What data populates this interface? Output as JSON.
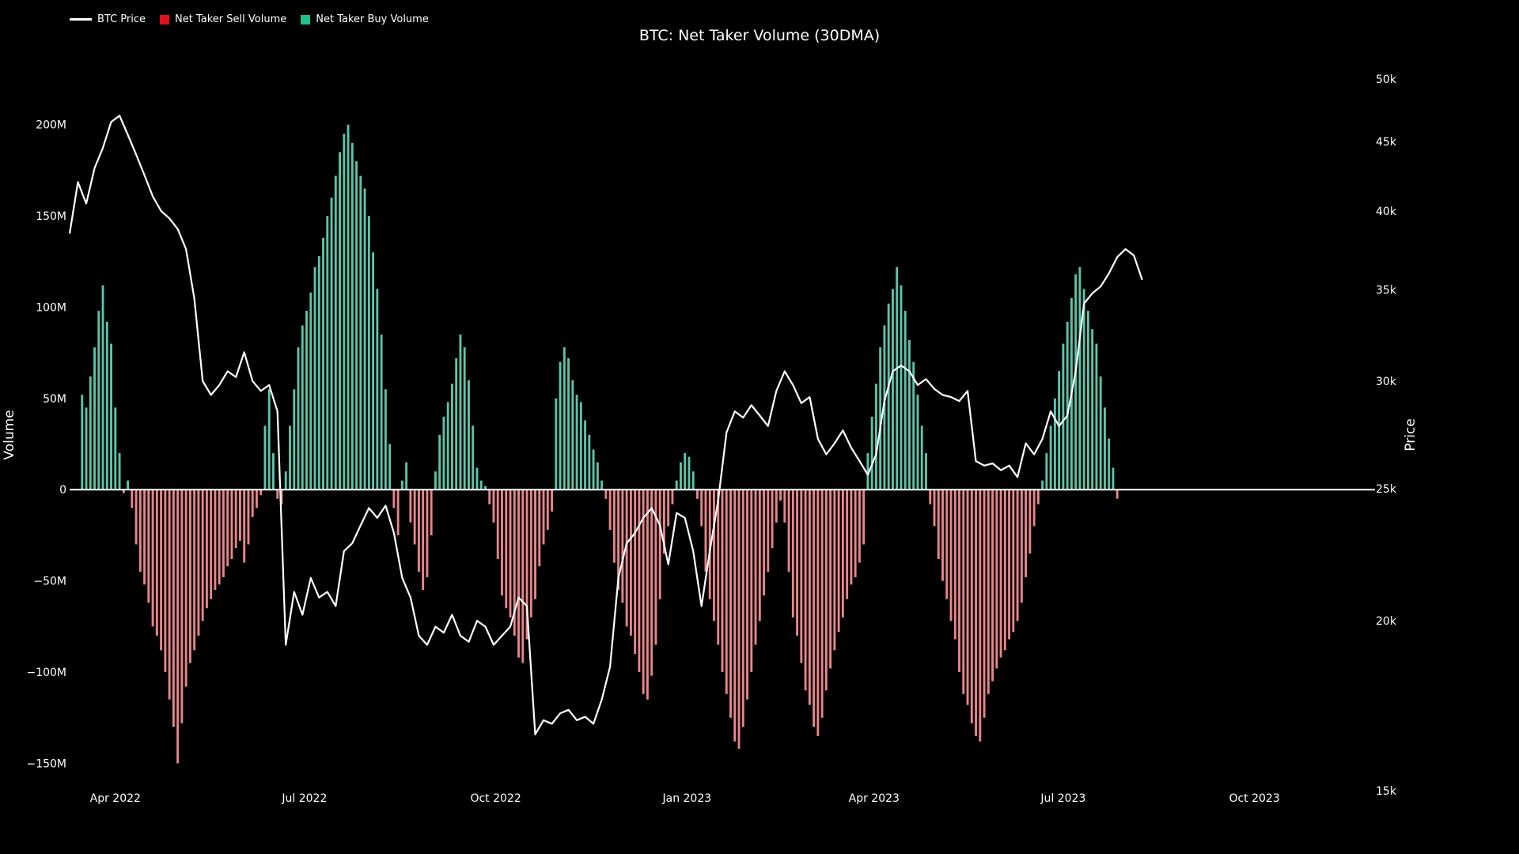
{
  "chart_data": {
    "type": "bar",
    "title": "BTC: Net Taker Volume (30DMA)",
    "ylabel": "Volume",
    "y2label": "Price",
    "ylim": [
      -165000000,
      225000000
    ],
    "y2lim": [
      15000,
      50000
    ],
    "y2scale": "log",
    "legend_position": "top-left",
    "grid": false,
    "yticks": [
      {
        "value": 200000000,
        "label": "200M"
      },
      {
        "value": 150000000,
        "label": "150M"
      },
      {
        "value": 100000000,
        "label": "100M"
      },
      {
        "value": 50000000,
        "label": "50M"
      },
      {
        "value": 0,
        "label": "0"
      },
      {
        "value": -50000000,
        "label": "−50M"
      },
      {
        "value": -100000000,
        "label": "−100M"
      },
      {
        "value": -150000000,
        "label": "−150M"
      }
    ],
    "y2ticks": [
      {
        "value": 50000,
        "label": "50k"
      },
      {
        "value": 45000,
        "label": "45k"
      },
      {
        "value": 40000,
        "label": "40k"
      },
      {
        "value": 35000,
        "label": "35k"
      },
      {
        "value": 30000,
        "label": "30k"
      },
      {
        "value": 25000,
        "label": "25k"
      },
      {
        "value": 20000,
        "label": "20k"
      },
      {
        "value": 15000,
        "label": "15k"
      }
    ],
    "xticks": [
      {
        "date": "2022-04-01",
        "label": "Apr 2022"
      },
      {
        "date": "2022-07-01",
        "label": "Jul 2022"
      },
      {
        "date": "2022-10-01",
        "label": "Oct 2022"
      },
      {
        "date": "2023-01-01",
        "label": "Jan 2023"
      },
      {
        "date": "2023-04-01",
        "label": "Apr 2023"
      },
      {
        "date": "2023-07-01",
        "label": "Jul 2023"
      },
      {
        "date": "2023-10-01",
        "label": "Oct 2023"
      }
    ],
    "xrange": [
      "2022-03-10",
      "2023-11-28"
    ],
    "colors": {
      "sell": "#e8868a",
      "buy": "#5dc4a8",
      "price": "#ffffff",
      "legend_sell": "#e0101c",
      "legend_buy": "#1fc08e",
      "zero_line": "#ffffff"
    },
    "series": [
      {
        "name": "Net Taker Volume",
        "step_days": 2,
        "start": "2022-03-16",
        "values_millions": [
          52,
          45,
          62,
          78,
          98,
          112,
          92,
          80,
          45,
          20,
          -2,
          5,
          -10,
          -30,
          -45,
          -52,
          -62,
          -75,
          -80,
          -88,
          -100,
          -115,
          -130,
          -150,
          -128,
          -108,
          -95,
          -88,
          -80,
          -72,
          -65,
          -60,
          -55,
          -52,
          -48,
          -42,
          -38,
          -32,
          -28,
          -40,
          -30,
          -15,
          -10,
          -3,
          35,
          55,
          20,
          -5,
          -8,
          10,
          35,
          55,
          78,
          90,
          98,
          108,
          122,
          128,
          138,
          150,
          160,
          172,
          185,
          195,
          200,
          190,
          180,
          172,
          165,
          150,
          130,
          110,
          85,
          55,
          25,
          -10,
          -25,
          5,
          15,
          -18,
          -30,
          -45,
          -55,
          -48,
          -25,
          10,
          30,
          40,
          48,
          58,
          72,
          85,
          78,
          60,
          35,
          12,
          5,
          2,
          -8,
          -18,
          -38,
          -58,
          -65,
          -70,
          -80,
          -92,
          -95,
          -82,
          -70,
          -60,
          -42,
          -30,
          -22,
          -12,
          50,
          70,
          78,
          72,
          60,
          52,
          48,
          38,
          30,
          22,
          15,
          5,
          -5,
          -22,
          -40,
          -55,
          -62,
          -75,
          -80,
          -90,
          -100,
          -112,
          -115,
          -102,
          -85,
          -60,
          -35,
          -20,
          -8,
          5,
          15,
          20,
          18,
          10,
          -5,
          -20,
          -45,
          -60,
          -72,
          -85,
          -100,
          -112,
          -125,
          -138,
          -142,
          -130,
          -115,
          -100,
          -85,
          -72,
          -58,
          -45,
          -32,
          -18,
          -6,
          -18,
          -45,
          -70,
          -80,
          -95,
          -110,
          -118,
          -130,
          -135,
          -125,
          -110,
          -98,
          -88,
          -78,
          -70,
          -60,
          -52,
          -48,
          -40,
          -30,
          20,
          40,
          58,
          78,
          90,
          102,
          110,
          122,
          112,
          98,
          82,
          70,
          52,
          35,
          20,
          -8,
          -20,
          -38,
          -50,
          -60,
          -72,
          -82,
          -100,
          -112,
          -118,
          -128,
          -135,
          -138,
          -125,
          -112,
          -105,
          -98,
          -92,
          -88,
          -82,
          -78,
          -72,
          -62,
          -48,
          -35,
          -20,
          -8,
          5,
          20,
          35,
          50,
          65,
          80,
          92,
          105,
          118,
          122,
          110,
          98,
          88,
          80,
          62,
          45,
          28,
          12,
          -5
        ]
      },
      {
        "name": "BTC Price",
        "start": "2022-03-10",
        "step_days": 4,
        "values": [
          38500,
          42000,
          40500,
          43000,
          44500,
          46500,
          47000,
          45500,
          44000,
          42500,
          41000,
          40000,
          39500,
          38800,
          37500,
          34500,
          30000,
          29300,
          29800,
          30500,
          30200,
          31500,
          30000,
          29500,
          29800,
          28500,
          19200,
          21000,
          20200,
          21500,
          20800,
          21000,
          20500,
          22500,
          22800,
          23500,
          24200,
          23800,
          24300,
          23200,
          21500,
          20800,
          19500,
          19200,
          19800,
          19600,
          20200,
          19500,
          19300,
          20000,
          19800,
          19200,
          19500,
          19800,
          20800,
          20500,
          16500,
          16900,
          16800,
          17100,
          17200,
          16900,
          17000,
          16800,
          17500,
          18500,
          21500,
          22800,
          23200,
          23800,
          24200,
          23500,
          22000,
          24000,
          23800,
          22500,
          20500,
          22500,
          24500,
          27500,
          28500,
          28200,
          28800,
          28300,
          27800,
          29500,
          30500,
          29800,
          28900,
          29200,
          27200,
          26500,
          27000,
          27600,
          26800,
          26200,
          25600,
          26500,
          29000,
          30500,
          30800,
          30500,
          29800,
          30100,
          29600,
          29300,
          29200,
          29000,
          29500,
          26200,
          26000,
          26100,
          25800,
          26000,
          25500,
          27000,
          26500,
          27200,
          28500,
          27800,
          28300,
          30500,
          34200,
          34800,
          35200,
          36000,
          37000,
          37500,
          37100,
          35600
        ]
      }
    ]
  },
  "legend": {
    "price": "BTC Price",
    "sell": "Net Taker Sell Volume",
    "buy": "Net Taker Buy Volume"
  }
}
